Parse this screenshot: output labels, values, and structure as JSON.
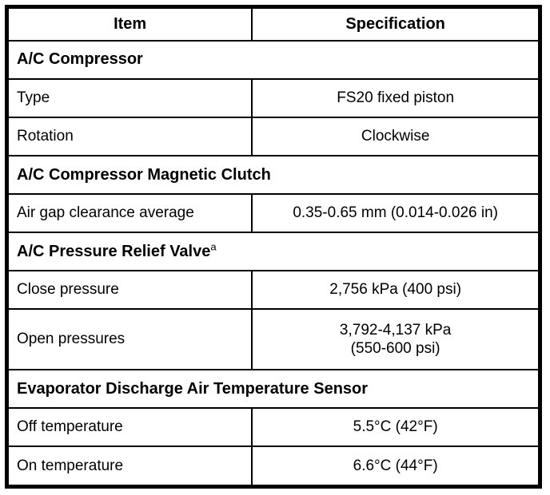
{
  "table": {
    "headers": [
      "Item",
      "Specification"
    ],
    "rows": [
      {
        "kind": "section",
        "label": "A/C Compressor"
      },
      {
        "kind": "data",
        "item": "Type",
        "spec": "FS20 fixed piston"
      },
      {
        "kind": "data",
        "item": "Rotation",
        "spec": "Clockwise"
      },
      {
        "kind": "section",
        "label": "A/C Compressor Magnetic Clutch"
      },
      {
        "kind": "data",
        "item": "Air gap clearance average",
        "spec": "0.35-0.65 mm (0.014-0.026 in)"
      },
      {
        "kind": "section",
        "label": "A/C Pressure Relief Valve",
        "footnote": "a"
      },
      {
        "kind": "data",
        "item": "Close pressure",
        "spec": "2,756 kPa (400 psi)"
      },
      {
        "kind": "data",
        "item": "Open pressures",
        "spec": "3,792-4,137 kPa\n(550-600 psi)"
      },
      {
        "kind": "section",
        "label": "Evaporator Discharge Air Temperature Sensor"
      },
      {
        "kind": "data",
        "item": "Off temperature",
        "spec": "5.5°C (42°F)"
      },
      {
        "kind": "data",
        "item": "On temperature",
        "spec": "6.6°C (44°F)"
      }
    ],
    "colors": {
      "border": "#000000",
      "background": "#ffffff",
      "text": "#000000"
    }
  }
}
